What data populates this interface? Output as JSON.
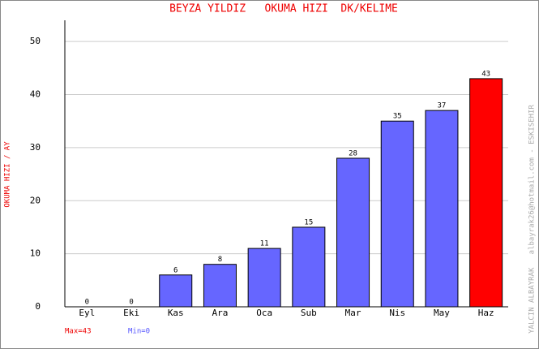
{
  "chart_data": {
    "type": "bar",
    "title": "BEYZA YILDIZ   OKUMA HIZI  DK/KELIME",
    "y_label": "OKUMA HIZI / AY",
    "side_note": "YALCIN ALBAYRAK   albayrak26@hotmail.com - ESKISEHIR",
    "max_note": "Max=43",
    "min_note": "Min=0",
    "categories": [
      "Eyl",
      "Eki",
      "Kas",
      "Ara",
      "Oca",
      "Sub",
      "Mar",
      "Nis",
      "May",
      "Haz"
    ],
    "values": [
      0,
      0,
      6,
      8,
      11,
      15,
      28,
      35,
      37,
      43
    ],
    "colors": [
      "#6666ff",
      "#6666ff",
      "#6666ff",
      "#6666ff",
      "#6666ff",
      "#6666ff",
      "#6666ff",
      "#6666ff",
      "#6666ff",
      "#ff0000"
    ],
    "ylim": [
      0,
      54
    ],
    "yticks": [
      0,
      10,
      20,
      30,
      40,
      50
    ],
    "grid": true
  }
}
